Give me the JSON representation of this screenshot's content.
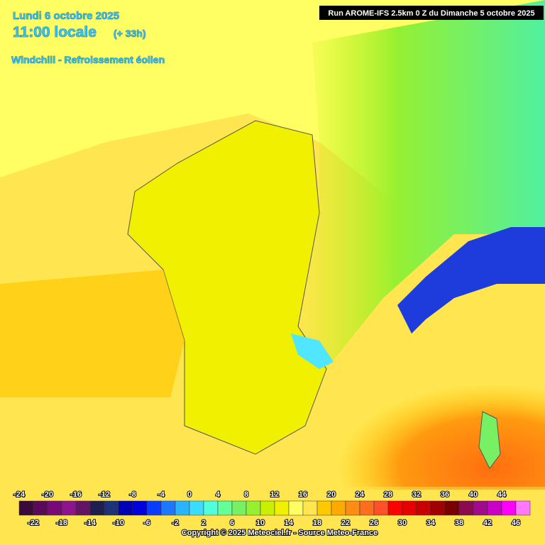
{
  "header": {
    "date": "Lundi 6 octobre 2025",
    "time": "11:00 locale",
    "offset": "(+ 33h)",
    "parameter": "Windchill - Refroissement éolien",
    "run": "Run AROME-IFS 2.5km 0 Z du Dimanche 5 octobre 2025"
  },
  "legend": {
    "labels": [
      -24,
      -22,
      -20,
      -18,
      -16,
      -14,
      -12,
      -10,
      -8,
      -6,
      -4,
      -2,
      0,
      2,
      4,
      6,
      8,
      10,
      12,
      14,
      16,
      18,
      20,
      22,
      24,
      26,
      28,
      30,
      32,
      34,
      36,
      38,
      40,
      42,
      44,
      46
    ],
    "colors": [
      "#3a0a3a",
      "#5a0a5a",
      "#780a78",
      "#8c148c",
      "#641464",
      "#1e1e50",
      "#1e3278",
      "#0000b4",
      "#0000dc",
      "#0a3cff",
      "#1e78ff",
      "#28b4ff",
      "#3cdcff",
      "#50ffdc",
      "#64ff96",
      "#78f064",
      "#96f032",
      "#c8f000",
      "#f0f000",
      "#ffff64",
      "#ffe650",
      "#ffc800",
      "#ffaa00",
      "#ff8c14",
      "#ff6e1e",
      "#ff5028",
      "#ff0000",
      "#e60000",
      "#c80000",
      "#a00000",
      "#780000",
      "#8c0a50",
      "#a00a8c",
      "#c800c8",
      "#ff00ff",
      "#ff78ff"
    ]
  },
  "footer": {
    "copyright": "Copyright © 2025 Meteociel.fr - Source Meteo-France"
  }
}
